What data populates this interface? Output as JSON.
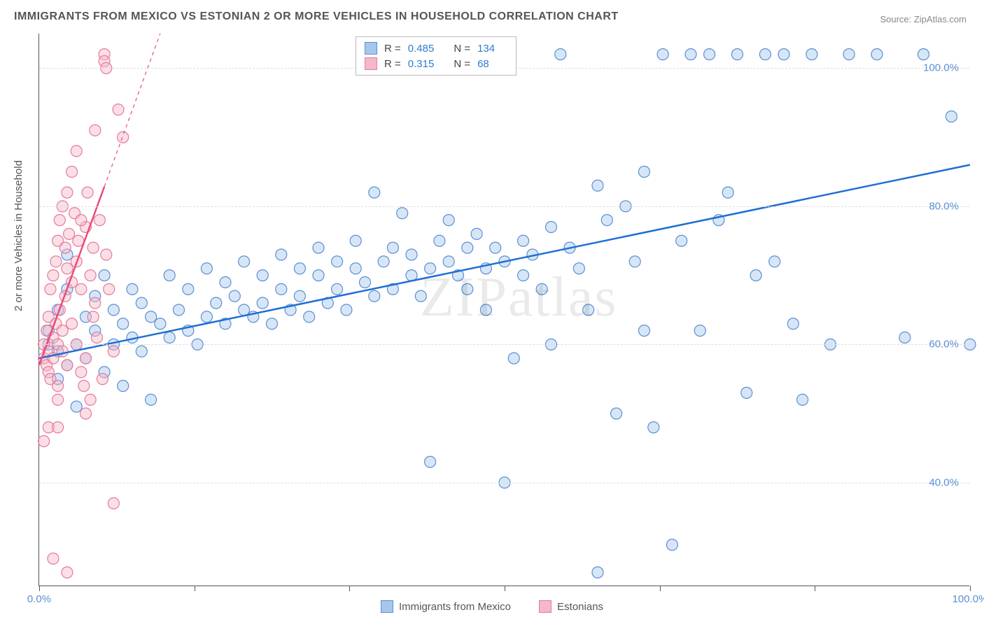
{
  "title": "IMMIGRANTS FROM MEXICO VS ESTONIAN 2 OR MORE VEHICLES IN HOUSEHOLD CORRELATION CHART",
  "source_prefix": "Source: ",
  "source": "ZipAtlas.com",
  "ylabel": "2 or more Vehicles in Household",
  "watermark": "ZIPatlas",
  "chart": {
    "type": "scatter",
    "background_color": "#ffffff",
    "grid_color": "#dddddd",
    "axis_color": "#555555",
    "xlim": [
      0,
      100
    ],
    "ylim": [
      25,
      105
    ],
    "xticks": [
      0,
      16.67,
      33.33,
      50,
      66.67,
      83.33,
      100
    ],
    "xtick_labels": {
      "0": "0.0%",
      "100": "100.0%"
    },
    "yticks": [
      40,
      60,
      80,
      100
    ],
    "ytick_labels": {
      "40": "40.0%",
      "60": "60.0%",
      "80": "80.0%",
      "100": "100.0%"
    },
    "marker_radius": 8,
    "marker_opacity": 0.45,
    "line_width": 2.5,
    "label_fontsize": 15,
    "title_fontsize": 16,
    "series": [
      {
        "id": "mexico",
        "label": "Immigrants from Mexico",
        "color_fill": "#a7c7ea",
        "color_stroke": "#5b8fd6",
        "line_color": "#1f6fd4",
        "R": "0.485",
        "N": "134",
        "trend": {
          "x1": 0,
          "y1": 58,
          "x2": 100,
          "y2": 86,
          "dashed_after_x": null
        },
        "points": [
          [
            1,
            60
          ],
          [
            1,
            62
          ],
          [
            2,
            59
          ],
          [
            2,
            55
          ],
          [
            2,
            65
          ],
          [
            3,
            68
          ],
          [
            3,
            57
          ],
          [
            3,
            73
          ],
          [
            4,
            60
          ],
          [
            4,
            51
          ],
          [
            5,
            64
          ],
          [
            5,
            58
          ],
          [
            6,
            62
          ],
          [
            6,
            67
          ],
          [
            7,
            56
          ],
          [
            7,
            70
          ],
          [
            8,
            65
          ],
          [
            8,
            60
          ],
          [
            9,
            54
          ],
          [
            9,
            63
          ],
          [
            10,
            61
          ],
          [
            10,
            68
          ],
          [
            11,
            66
          ],
          [
            11,
            59
          ],
          [
            12,
            64
          ],
          [
            12,
            52
          ],
          [
            13,
            63
          ],
          [
            14,
            70
          ],
          [
            14,
            61
          ],
          [
            15,
            65
          ],
          [
            16,
            62
          ],
          [
            16,
            68
          ],
          [
            17,
            60
          ],
          [
            18,
            64
          ],
          [
            18,
            71
          ],
          [
            19,
            66
          ],
          [
            20,
            63
          ],
          [
            20,
            69
          ],
          [
            21,
            67
          ],
          [
            22,
            65
          ],
          [
            22,
            72
          ],
          [
            23,
            64
          ],
          [
            24,
            70
          ],
          [
            24,
            66
          ],
          [
            25,
            63
          ],
          [
            26,
            68
          ],
          [
            26,
            73
          ],
          [
            27,
            65
          ],
          [
            28,
            71
          ],
          [
            28,
            67
          ],
          [
            29,
            64
          ],
          [
            30,
            70
          ],
          [
            30,
            74
          ],
          [
            31,
            66
          ],
          [
            32,
            72
          ],
          [
            32,
            68
          ],
          [
            33,
            65
          ],
          [
            34,
            71
          ],
          [
            34,
            75
          ],
          [
            35,
            69
          ],
          [
            36,
            67
          ],
          [
            36,
            82
          ],
          [
            37,
            72
          ],
          [
            38,
            74
          ],
          [
            38,
            68
          ],
          [
            39,
            79
          ],
          [
            40,
            70
          ],
          [
            40,
            73
          ],
          [
            41,
            67
          ],
          [
            42,
            71
          ],
          [
            42,
            43
          ],
          [
            43,
            75
          ],
          [
            44,
            72
          ],
          [
            44,
            78
          ],
          [
            45,
            70
          ],
          [
            46,
            74
          ],
          [
            46,
            68
          ],
          [
            47,
            76
          ],
          [
            48,
            71
          ],
          [
            48,
            65
          ],
          [
            49,
            74
          ],
          [
            50,
            40
          ],
          [
            50,
            72
          ],
          [
            51,
            58
          ],
          [
            52,
            75
          ],
          [
            52,
            70
          ],
          [
            53,
            73
          ],
          [
            54,
            68
          ],
          [
            55,
            77
          ],
          [
            55,
            60
          ],
          [
            56,
            102
          ],
          [
            57,
            74
          ],
          [
            58,
            71
          ],
          [
            59,
            65
          ],
          [
            60,
            83
          ],
          [
            60,
            27
          ],
          [
            61,
            78
          ],
          [
            62,
            50
          ],
          [
            63,
            80
          ],
          [
            64,
            72
          ],
          [
            65,
            85
          ],
          [
            65,
            62
          ],
          [
            66,
            48
          ],
          [
            67,
            102
          ],
          [
            68,
            31
          ],
          [
            69,
            75
          ],
          [
            70,
            102
          ],
          [
            71,
            62
          ],
          [
            72,
            102
          ],
          [
            73,
            78
          ],
          [
            74,
            82
          ],
          [
            75,
            102
          ],
          [
            76,
            53
          ],
          [
            77,
            70
          ],
          [
            78,
            102
          ],
          [
            79,
            72
          ],
          [
            80,
            102
          ],
          [
            81,
            63
          ],
          [
            82,
            52
          ],
          [
            83,
            102
          ],
          [
            85,
            60
          ],
          [
            87,
            102
          ],
          [
            90,
            102
          ],
          [
            93,
            61
          ],
          [
            95,
            102
          ],
          [
            98,
            93
          ],
          [
            100,
            60
          ]
        ]
      },
      {
        "id": "estonians",
        "label": "Estonians",
        "color_fill": "#f4b8c8",
        "color_stroke": "#e77a9a",
        "line_color": "#e94b7a",
        "R": "0.315",
        "N": "68",
        "trend": {
          "x1": 0,
          "y1": 57,
          "x2": 13,
          "y2": 105,
          "dashed_after_x": 7
        },
        "points": [
          [
            0.5,
            58
          ],
          [
            0.5,
            60
          ],
          [
            0.8,
            57
          ],
          [
            0.8,
            62
          ],
          [
            1,
            56
          ],
          [
            1,
            64
          ],
          [
            1,
            59
          ],
          [
            1.2,
            68
          ],
          [
            1.2,
            55
          ],
          [
            1.5,
            61
          ],
          [
            1.5,
            70
          ],
          [
            1.5,
            58
          ],
          [
            1.8,
            72
          ],
          [
            1.8,
            63
          ],
          [
            2,
            60
          ],
          [
            2,
            75
          ],
          [
            2,
            54
          ],
          [
            2,
            52
          ],
          [
            2.2,
            65
          ],
          [
            2.2,
            78
          ],
          [
            2.5,
            59
          ],
          [
            2.5,
            80
          ],
          [
            2.5,
            62
          ],
          [
            2.8,
            74
          ],
          [
            2.8,
            67
          ],
          [
            3,
            71
          ],
          [
            3,
            82
          ],
          [
            3,
            57
          ],
          [
            3.2,
            76
          ],
          [
            3.5,
            69
          ],
          [
            3.5,
            85
          ],
          [
            3.5,
            63
          ],
          [
            3.8,
            79
          ],
          [
            4,
            72
          ],
          [
            4,
            88
          ],
          [
            4,
            60
          ],
          [
            4.2,
            75
          ],
          [
            4.5,
            68
          ],
          [
            4.5,
            56
          ],
          [
            4.8,
            54
          ],
          [
            5,
            77
          ],
          [
            5,
            50
          ],
          [
            5,
            58
          ],
          [
            5.2,
            82
          ],
          [
            5.5,
            70
          ],
          [
            5.5,
            52
          ],
          [
            5.8,
            74
          ],
          [
            6,
            66
          ],
          [
            6,
            91
          ],
          [
            6.2,
            61
          ],
          [
            6.5,
            78
          ],
          [
            6.8,
            55
          ],
          [
            7,
            102
          ],
          [
            7,
            101
          ],
          [
            7.2,
            73
          ],
          [
            7.5,
            68
          ],
          [
            8,
            59
          ],
          [
            8,
            37
          ],
          [
            8.5,
            94
          ],
          [
            9,
            90
          ],
          [
            1.5,
            29
          ],
          [
            3,
            27
          ],
          [
            1,
            48
          ],
          [
            0.5,
            46
          ],
          [
            2,
            48
          ],
          [
            4.5,
            78
          ],
          [
            5.8,
            64
          ],
          [
            7.2,
            100
          ]
        ]
      }
    ]
  },
  "legend_top": {
    "R_label": "R =",
    "N_label": "N ="
  },
  "legend_bottom": {
    "items": [
      {
        "swatch_fill": "#a7c7ea",
        "swatch_stroke": "#5b8fd6",
        "bind": "chart.series.0.label"
      },
      {
        "swatch_fill": "#f4b8c8",
        "swatch_stroke": "#e77a9a",
        "bind": "chart.series.1.label"
      }
    ]
  }
}
